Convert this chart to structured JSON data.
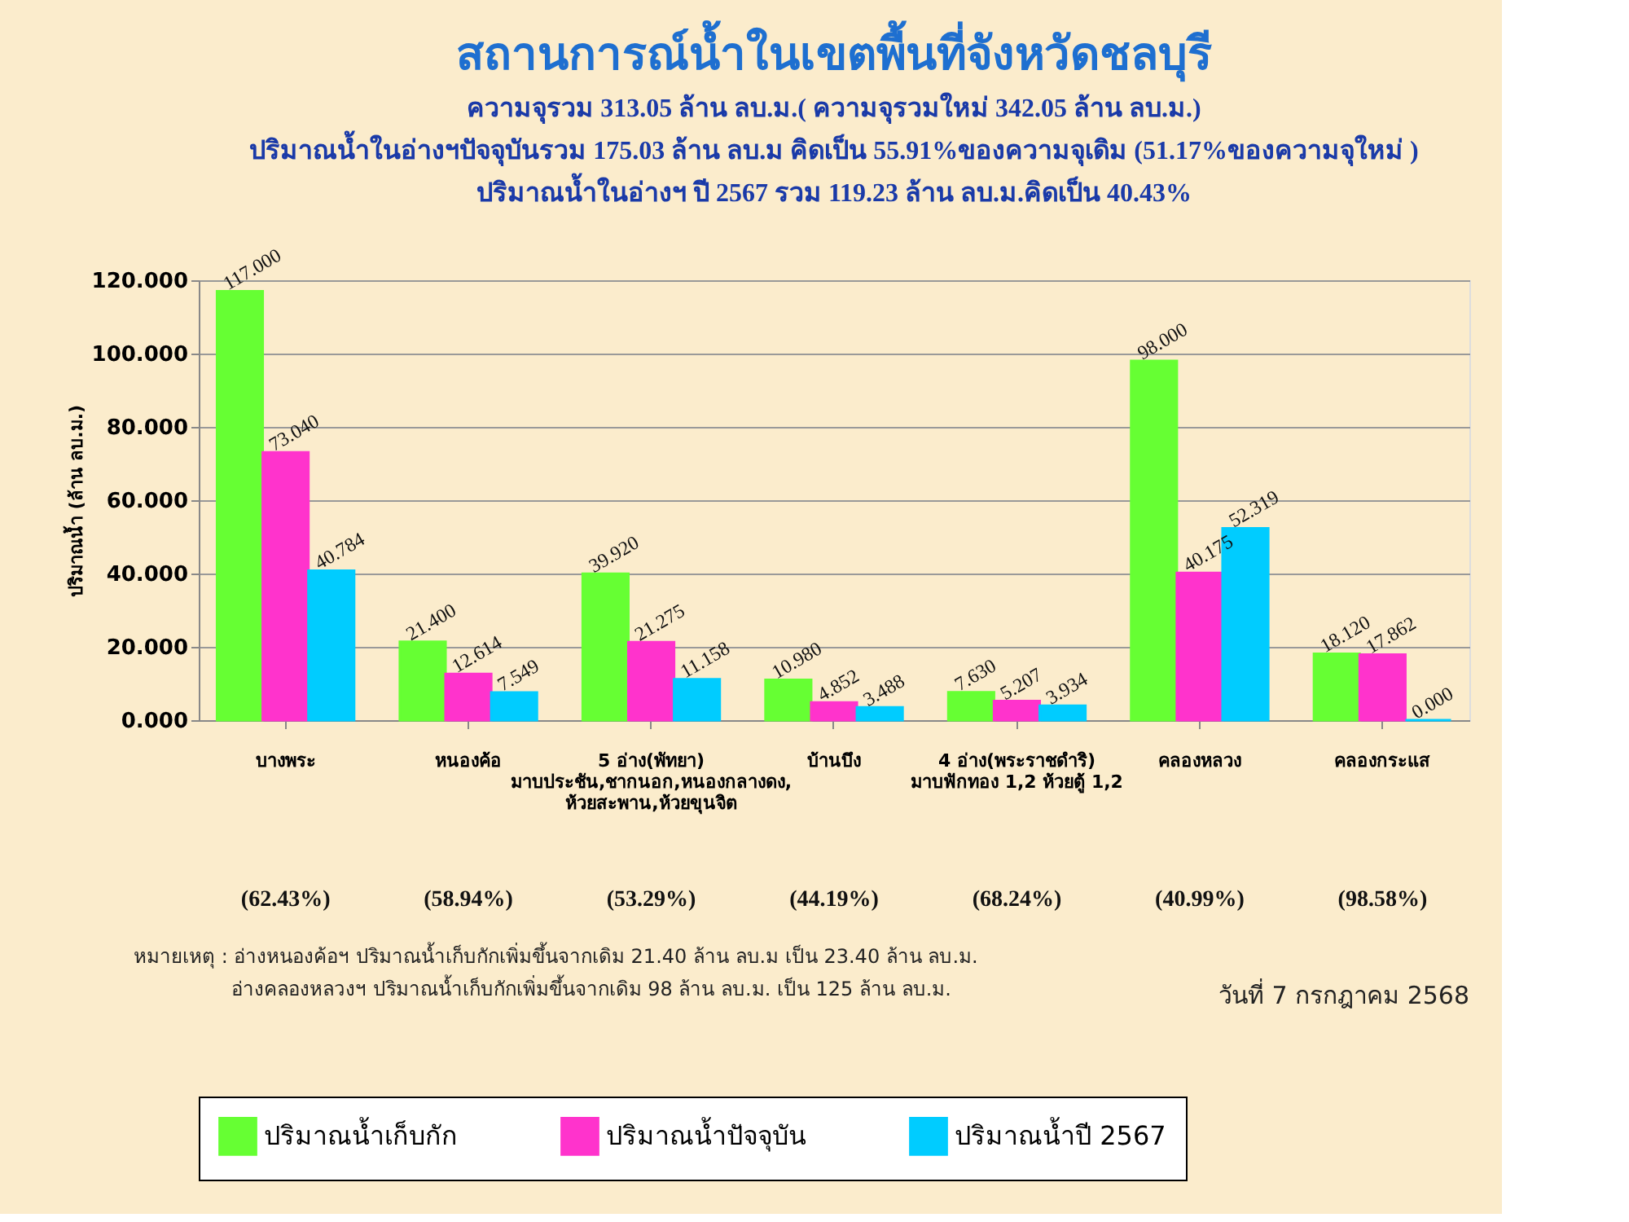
{
  "chart_data": {
    "type": "bar",
    "title": "สถานการณ์น้ำในเขตพื้นที่จังหวัดชลบุรี",
    "subtitle": [
      "ความจุรวม  313.05 ล้าน ลบ.ม.( ความจุรวมใหม่ 342.05 ล้าน ลบ.ม.)",
      "ปริมาณน้ำในอ่างฯปัจจุบันรวม 175.03 ล้าน ลบ.ม คิดเป็น 55.91%ของความจุเดิม (51.17%ของความจุใหม่ )",
      "ปริมาณน้ำในอ่างฯ ปี 2567 รวม 119.23 ล้าน ลบ.ม.คิดเป็น 40.43%"
    ],
    "ylabel": "ปริมาณน้ำ (ล้าน ลบ.ม.)",
    "categories": [
      "บางพระ",
      "หนองค้อ",
      "5 อ่าง(พัทยา)\nมาบประชัน,ชากนอก,หนองกลางดง,\nห้วยสะพาน,ห้วยขุนจิต",
      "บ้านบึง",
      "4 อ่าง(พระราชดำริ)\nมาบฟักทอง 1,2 ห้วยตู้ 1,2",
      "คลองหลวง",
      "คลองกระแส"
    ],
    "series": [
      {
        "name": "ปริมาณน้ำเก็บกัก",
        "color": "#66ff33",
        "values": [
          117.0,
          21.4,
          39.92,
          10.98,
          7.63,
          98.0,
          18.12
        ],
        "value_labels": [
          "117.000",
          "21.400",
          "39.920",
          "10.980",
          "7.630",
          "98.000",
          "18.120"
        ]
      },
      {
        "name": "ปริมาณน้ำปัจจุบัน",
        "color": "#ff33cc",
        "values": [
          73.04,
          12.614,
          21.275,
          4.852,
          5.207,
          40.175,
          17.862
        ],
        "value_labels": [
          "73.040",
          "12.614",
          "21.275",
          "4.852",
          "5.207",
          "40.175",
          "17.862"
        ]
      },
      {
        "name": "ปริมาณน้ำปี 2567",
        "color": "#00ccff",
        "values": [
          40.784,
          7.549,
          11.158,
          3.488,
          3.934,
          52.319,
          0.0
        ],
        "value_labels": [
          "40.784",
          "7.549",
          "11.158",
          "3.488",
          "3.934",
          "52.319",
          "0.000"
        ]
      }
    ],
    "ylim": [
      0,
      120
    ],
    "yticks": [
      {
        "value": 0,
        "label": "0.000"
      },
      {
        "value": 20,
        "label": "20.000"
      },
      {
        "value": 40,
        "label": "40.000"
      },
      {
        "value": 60,
        "label": "60.000"
      },
      {
        "value": 80,
        "label": "80.000"
      },
      {
        "value": 100,
        "label": "100.000"
      },
      {
        "value": 120,
        "label": "120.000"
      }
    ],
    "grid": "y",
    "legend": "bottom",
    "annotations": [
      "(62.43%)",
      "(58.94%)",
      "(53.29%)",
      "(44.19%)",
      "(68.24%)",
      "(40.99%)",
      "(98.58%)",
      "หมายเหตุ :  อ่างหนองค้อฯ ปริมาณน้ำเก็บกักเพิ่มขึ้นจากเดิม 21.40 ล้าน ลบ.ม เป็น 23.40 ล้าน ลบ.ม.",
      "อ่างคลองหลวงฯ ปริมาณน้ำเก็บกักเพิ่มขึ้นจากเดิม 98 ล้าน ลบ.ม. เป็น 125 ล้าน ลบ.ม.",
      "วันที่ 7 กรกฎาคม 2568"
    ]
  }
}
